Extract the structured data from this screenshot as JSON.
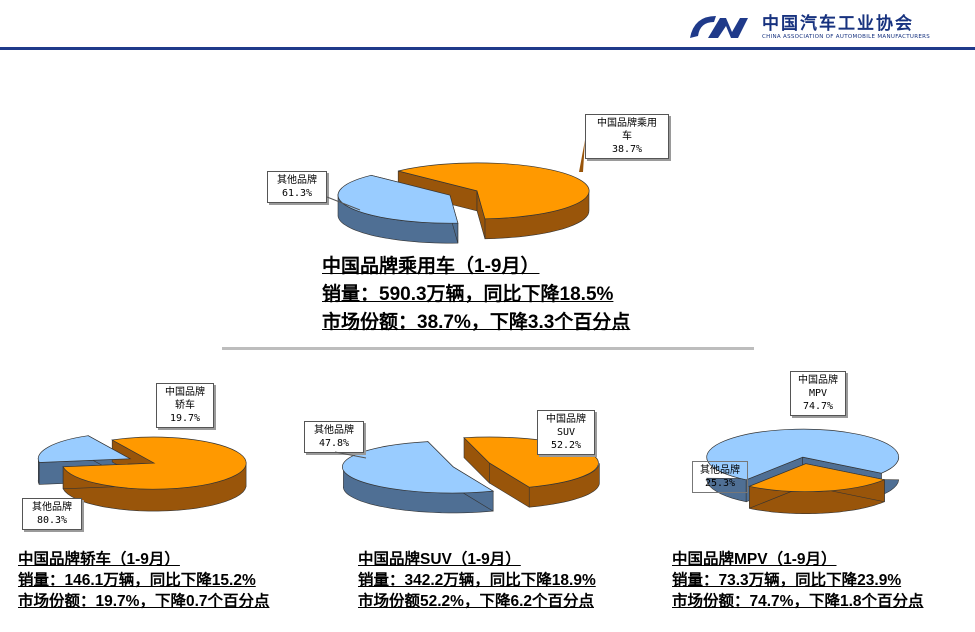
{
  "header": {
    "org_name": "中国汽车工业协会",
    "org_name_en": "CHINA ASSOCIATION OF AUTOMOBILE MANUFACTURERS",
    "logo_color": "#1f3a8a"
  },
  "colors": {
    "domestic_top": "#99ccff",
    "domestic_side": "#4f6f94",
    "other_top": "#ff9900",
    "other_side": "#99550a"
  },
  "captions": {
    "main": {
      "title": "中国品牌乘用车（1-9月）",
      "sales": "销量：590.3万辆，同比下降18.5%",
      "share": "市场份额：38.7%，下降3.3个百分点"
    },
    "sedan": {
      "title": "中国品牌轿车（1-9月）",
      "sales": "销量：146.1万辆，同比下降15.2%",
      "share": "市场份额：19.7%，下降0.7个百分点"
    },
    "suv": {
      "title": "中国品牌SUV（1-9月）",
      "sales": "销量：342.2万辆，同比下降18.9%",
      "share": "市场份额52.2%，下降6.2个百分点"
    },
    "mpv": {
      "title": "中国品牌MPV（1-9月）",
      "sales": "销量：73.3万辆，同比下降23.9%",
      "share": "市场份额：74.7%，下降1.8个百分点"
    }
  },
  "chart_data": [
    {
      "type": "pie",
      "id": "passenger",
      "slices": [
        {
          "label": [
            "中国品牌乘用",
            "车"
          ],
          "value": 38.7,
          "value_label": "38.7%"
        },
        {
          "label": [
            "其他品牌"
          ],
          "value": 61.3,
          "value_label": "61.3%"
        }
      ]
    },
    {
      "type": "pie",
      "id": "sedan",
      "slices": [
        {
          "label": [
            "中国品牌",
            "轿车"
          ],
          "value": 19.7,
          "value_label": "19.7%"
        },
        {
          "label": [
            "其他品牌"
          ],
          "value": 80.3,
          "value_label": "80.3%"
        }
      ]
    },
    {
      "type": "pie",
      "id": "suv",
      "slices": [
        {
          "label": [
            "中国品牌",
            "SUV"
          ],
          "value": 52.2,
          "value_label": "52.2%"
        },
        {
          "label": [
            "其他品牌"
          ],
          "value": 47.8,
          "value_label": "47.8%"
        }
      ]
    },
    {
      "type": "pie",
      "id": "mpv",
      "slices": [
        {
          "label": [
            "中国品牌",
            "MPV"
          ],
          "value": 74.7,
          "value_label": "74.7%"
        },
        {
          "label": [
            "其他品牌"
          ],
          "value": 25.3,
          "value_label": "25.3%"
        }
      ]
    }
  ]
}
